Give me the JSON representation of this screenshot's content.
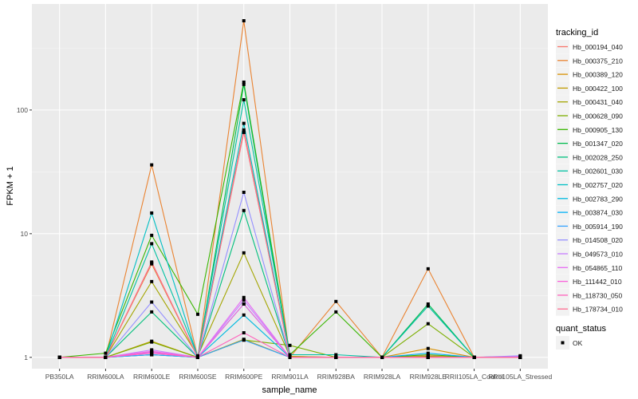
{
  "chart_data": {
    "type": "line",
    "xlabel": "sample_name",
    "ylabel": "FPKM + 1",
    "y_scale": "log10",
    "ylim": [
      0.81,
      720
    ],
    "y_ticks": [
      "1",
      "10",
      "100"
    ],
    "y_tick_values": [
      1,
      10,
      100
    ],
    "grid": true,
    "legend_placement": "right",
    "categories": [
      "PB350LA",
      "RRIM600LA",
      "RRIM600LE",
      "RRIM600SE",
      "RRIM600PE",
      "RRIM901LA",
      "RRIM928BA",
      "RRIM928LA",
      "RRIM928LE",
      "RRII105LA_Control",
      "RRII105LA_Stressed"
    ],
    "legend_title": "tracking_id",
    "series": [
      {
        "name": "Hb_000194_040",
        "color": "#F8766D",
        "values": [
          1,
          1,
          5.9,
          1.0,
          69,
          1.02,
          1.0,
          1,
          1.03,
          1,
          1.0
        ]
      },
      {
        "name": "Hb_000375_210",
        "color": "#EA8331",
        "values": [
          1,
          1,
          36,
          1.0,
          527,
          1.0,
          2.83,
          1,
          5.2,
          1,
          1.0
        ]
      },
      {
        "name": "Hb_000389_120",
        "color": "#D89000",
        "values": [
          1,
          1,
          5.7,
          1.0,
          66,
          1.0,
          1.0,
          1,
          1.18,
          1,
          1.0
        ]
      },
      {
        "name": "Hb_000422_100",
        "color": "#C09B00",
        "values": [
          1,
          1,
          1.35,
          1.0,
          1.4,
          1.0,
          1.0,
          1,
          1.0,
          1,
          1.0
        ]
      },
      {
        "name": "Hb_000431_040",
        "color": "#A3A500",
        "values": [
          1,
          1,
          4.1,
          1.03,
          7.0,
          1.02,
          1.0,
          1,
          1.02,
          1,
          1.0
        ]
      },
      {
        "name": "Hb_000628_090",
        "color": "#7CAE00",
        "values": [
          1,
          1.0,
          1.33,
          1.0,
          1.38,
          1.25,
          1.0,
          1,
          1.87,
          1,
          1.0
        ]
      },
      {
        "name": "Hb_000905_130",
        "color": "#39B600",
        "values": [
          1,
          1.08,
          9.7,
          2.23,
          168,
          1.05,
          2.33,
          1,
          1.05,
          1,
          1.0
        ]
      },
      {
        "name": "Hb_001347_020",
        "color": "#00BB4E",
        "values": [
          1,
          1,
          1.05,
          1.0,
          161,
          1.0,
          1.0,
          1,
          2.7,
          1,
          1.0
        ]
      },
      {
        "name": "Hb_002028_250",
        "color": "#00BF7D",
        "values": [
          1,
          1,
          2.33,
          1.0,
          15.4,
          1.0,
          1.0,
          1,
          1.0,
          1,
          1.0
        ]
      },
      {
        "name": "Hb_002601_030",
        "color": "#00C1A3",
        "values": [
          1,
          1,
          8.3,
          1.02,
          121,
          1.05,
          1.05,
          1,
          2.6,
          1,
          1.02
        ]
      },
      {
        "name": "Hb_002757_020",
        "color": "#00BFC4",
        "values": [
          1,
          1,
          14.7,
          1.0,
          78,
          1.0,
          1.0,
          1,
          1.0,
          1,
          1.0
        ]
      },
      {
        "name": "Hb_002783_290",
        "color": "#00BAE0",
        "values": [
          1,
          1,
          1.05,
          1.0,
          2.2,
          1.0,
          1.0,
          1,
          1.0,
          1,
          1.0
        ]
      },
      {
        "name": "Hb_003874_030",
        "color": "#00B0F6",
        "values": [
          1,
          1,
          1.1,
          1.0,
          2.7,
          1.0,
          1.0,
          1,
          1.08,
          1,
          1.0
        ]
      },
      {
        "name": "Hb_005914_190",
        "color": "#35A2FF",
        "values": [
          1,
          1,
          1.05,
          1.0,
          1.38,
          1.0,
          1.0,
          1,
          1.0,
          1,
          1.0
        ]
      },
      {
        "name": "Hb_014508_020",
        "color": "#9590FF",
        "values": [
          1,
          1,
          2.8,
          1.0,
          21.6,
          1.0,
          1.0,
          1,
          1.0,
          1,
          1.03
        ]
      },
      {
        "name": "Hb_049573_010",
        "color": "#C77CFF",
        "values": [
          1,
          1,
          1.15,
          1.0,
          2.9,
          1.0,
          1.0,
          1,
          1.0,
          1,
          1.02
        ]
      },
      {
        "name": "Hb_054865_110",
        "color": "#E76BF3",
        "values": [
          1,
          1,
          1.1,
          1.0,
          3.05,
          1.0,
          1.0,
          1,
          1.0,
          1,
          1.0
        ]
      },
      {
        "name": "Hb_111442_010",
        "color": "#FA62DB",
        "values": [
          1,
          1,
          1.12,
          1.0,
          2.7,
          1.0,
          1.0,
          1,
          1.0,
          1,
          1.0
        ]
      },
      {
        "name": "Hb_118730_050",
        "color": "#FF62BC",
        "values": [
          1,
          1,
          1.08,
          1.0,
          1.58,
          1.0,
          1.0,
          1,
          1.0,
          1,
          1.0
        ]
      },
      {
        "name": "Hb_178734_010",
        "color": "#FF6C91",
        "values": [
          1,
          1,
          5.8,
          1.0,
          66,
          1.0,
          1.0,
          1,
          1.0,
          1,
          1.0
        ]
      }
    ],
    "shape_legend_title": "quant_status",
    "shape_legend_items": [
      "OK"
    ]
  }
}
